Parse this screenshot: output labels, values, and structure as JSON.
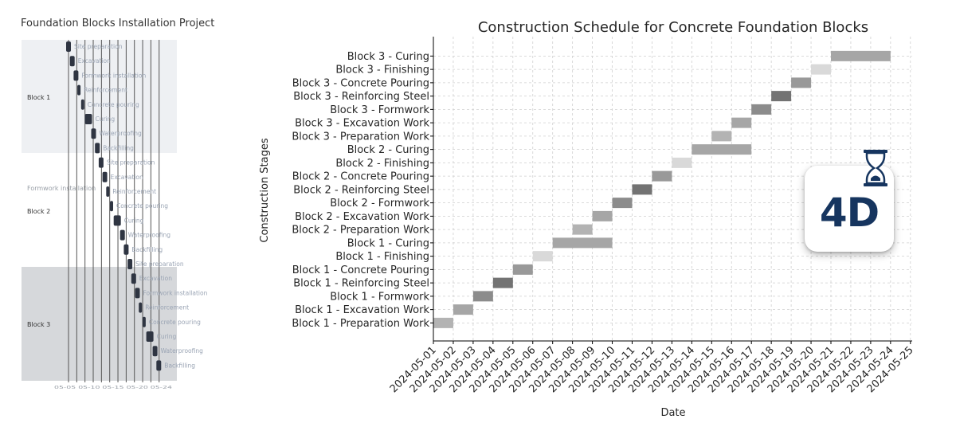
{
  "left_panel": {
    "title": "Foundation Blocks Installation Project",
    "groups": [
      "Block 1",
      "Block 2",
      "Block 3"
    ],
    "outside_label": "Formwork installation",
    "tasks": [
      {
        "label": "Site preparation",
        "group": 0
      },
      {
        "label": "Excavation",
        "group": 0
      },
      {
        "label": "Formwork installation",
        "group": 0
      },
      {
        "label": "Reinforcement",
        "group": 0
      },
      {
        "label": "Concrete pouring",
        "group": 0
      },
      {
        "label": "Curing",
        "group": 0
      },
      {
        "label": "Waterproofing",
        "group": 0
      },
      {
        "label": "Backfilling",
        "group": 0
      },
      {
        "label": "Site preparation",
        "group": 1
      },
      {
        "label": "Excavation",
        "group": 1
      },
      {
        "label": "Reinforcement",
        "group": 1
      },
      {
        "label": "Concrete pouring",
        "group": 1
      },
      {
        "label": "Curing",
        "group": 1
      },
      {
        "label": "Waterproofing",
        "group": 1
      },
      {
        "label": "Backfilling",
        "group": 1
      },
      {
        "label": "Site preparation",
        "group": 2
      },
      {
        "label": "Excavation",
        "group": 2
      },
      {
        "label": "Formwork installation",
        "group": 2
      },
      {
        "label": "Reinforcement",
        "group": 2
      },
      {
        "label": "Concrete pouring",
        "group": 2
      },
      {
        "label": "Curing",
        "group": 2
      },
      {
        "label": "Waterproofing",
        "group": 2
      },
      {
        "label": "Backfilling",
        "group": 2
      }
    ],
    "axis_text": "05-05 05-10 05-15 05-20 05-24"
  },
  "chart_data": {
    "type": "gantt",
    "title": "Construction Schedule for Concrete Foundation Blocks",
    "xlabel": "Date",
    "ylabel": "Construction Stages",
    "x_ticks": [
      "2024-05-01",
      "2024-05-02",
      "2024-05-03",
      "2024-05-04",
      "2024-05-05",
      "2024-05-06",
      "2024-05-07",
      "2024-05-08",
      "2024-05-09",
      "2024-05-10",
      "2024-05-11",
      "2024-05-12",
      "2024-05-13",
      "2024-05-14",
      "2024-05-15",
      "2024-05-16",
      "2024-05-17",
      "2024-05-18",
      "2024-05-19",
      "2024-05-20",
      "2024-05-21",
      "2024-05-22",
      "2024-05-23",
      "2024-05-24",
      "2024-05-25"
    ],
    "grid": true,
    "tasks": [
      {
        "stage": "Block 1 - Preparation Work",
        "start": "2024-05-01",
        "end": "2024-05-02",
        "color": "#b3b3b3"
      },
      {
        "stage": "Block 1 - Excavation Work",
        "start": "2024-05-02",
        "end": "2024-05-03",
        "color": "#a6a6a6"
      },
      {
        "stage": "Block 1 - Formwork",
        "start": "2024-05-03",
        "end": "2024-05-04",
        "color": "#8c8c8c"
      },
      {
        "stage": "Block 1 - Reinforcing Steel",
        "start": "2024-05-04",
        "end": "2024-05-05",
        "color": "#737373"
      },
      {
        "stage": "Block 1 - Concrete Pouring",
        "start": "2024-05-05",
        "end": "2024-05-06",
        "color": "#999999"
      },
      {
        "stage": "Block 1 - Finishing",
        "start": "2024-05-06",
        "end": "2024-05-07",
        "color": "#d9d9d9"
      },
      {
        "stage": "Block 1 - Curing",
        "start": "2024-05-07",
        "end": "2024-05-10",
        "color": "#a6a6a6"
      },
      {
        "stage": "Block 2 - Preparation Work",
        "start": "2024-05-08",
        "end": "2024-05-09",
        "color": "#b3b3b3"
      },
      {
        "stage": "Block 2 - Excavation Work",
        "start": "2024-05-09",
        "end": "2024-05-10",
        "color": "#a6a6a6"
      },
      {
        "stage": "Block 2 - Formwork",
        "start": "2024-05-10",
        "end": "2024-05-11",
        "color": "#8c8c8c"
      },
      {
        "stage": "Block 2 - Reinforcing Steel",
        "start": "2024-05-11",
        "end": "2024-05-12",
        "color": "#737373"
      },
      {
        "stage": "Block 2 - Concrete Pouring",
        "start": "2024-05-12",
        "end": "2024-05-13",
        "color": "#999999"
      },
      {
        "stage": "Block 2 - Finishing",
        "start": "2024-05-13",
        "end": "2024-05-14",
        "color": "#d9d9d9"
      },
      {
        "stage": "Block 2 - Curing",
        "start": "2024-05-14",
        "end": "2024-05-17",
        "color": "#a6a6a6"
      },
      {
        "stage": "Block 3 - Preparation Work",
        "start": "2024-05-15",
        "end": "2024-05-16",
        "color": "#b3b3b3"
      },
      {
        "stage": "Block 3 - Excavation Work",
        "start": "2024-05-16",
        "end": "2024-05-17",
        "color": "#a6a6a6"
      },
      {
        "stage": "Block 3 - Formwork",
        "start": "2024-05-17",
        "end": "2024-05-18",
        "color": "#8c8c8c"
      },
      {
        "stage": "Block 3 - Reinforcing Steel",
        "start": "2024-05-18",
        "end": "2024-05-19",
        "color": "#737373"
      },
      {
        "stage": "Block 3 - Concrete Pouring",
        "start": "2024-05-19",
        "end": "2024-05-20",
        "color": "#999999"
      },
      {
        "stage": "Block 3 - Finishing",
        "start": "2024-05-20",
        "end": "2024-05-21",
        "color": "#d9d9d9"
      },
      {
        "stage": "Block 3 - Curing",
        "start": "2024-05-21",
        "end": "2024-05-24",
        "color": "#a6a6a6"
      }
    ]
  },
  "badge": {
    "text": "4D",
    "icon": "hourglass-icon",
    "text_color": "#16355f"
  }
}
